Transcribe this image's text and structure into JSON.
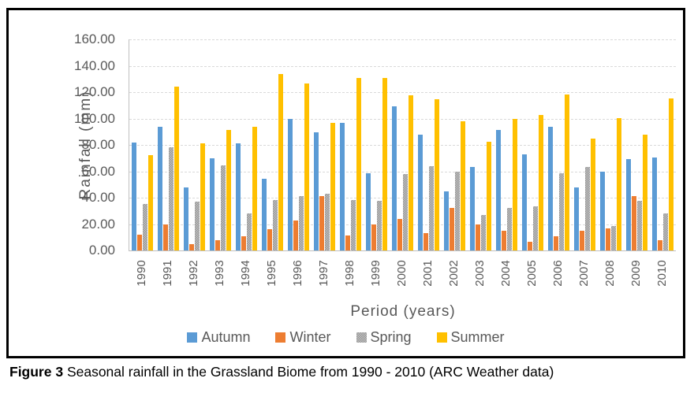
{
  "figure": {
    "caption_label": "Figure 3",
    "caption_text": " Seasonal rainfall in the Grassland Biome from 1990 - 2010 (ARC Weather data)"
  },
  "chart_data": {
    "type": "bar",
    "title": "",
    "xlabel": "Period (years)",
    "ylabel": "Rainfall (mm)",
    "ylim": [
      0,
      160
    ],
    "ytick_step": 20,
    "ytick_labels": [
      "160.00",
      "140.00",
      "120.00",
      "100.00",
      "80.00",
      "60.00",
      "40.00",
      "20.00",
      "0.00"
    ],
    "grid": true,
    "legend_position": "bottom",
    "categories": [
      "1990",
      "1991",
      "1992",
      "1993",
      "1994",
      "1995",
      "1996",
      "1997",
      "1998",
      "1999",
      "2000",
      "2001",
      "2002",
      "2003",
      "2004",
      "2005",
      "2006",
      "2007",
      "2008",
      "2009",
      "2010"
    ],
    "series": [
      {
        "name": "Autumn",
        "color": "#5B9BD5",
        "pattern": "solid",
        "values": [
          82,
          94,
          48,
          70,
          81,
          54.5,
          100,
          89.5,
          97,
          58.5,
          109,
          87.5,
          44.5,
          63,
          91.5,
          73,
          93.5,
          48,
          59.5,
          69.5,
          70.5
        ]
      },
      {
        "name": "Winter",
        "color": "#ED7D31",
        "pattern": "solid",
        "values": [
          12,
          20,
          5,
          8,
          10.5,
          16,
          22.5,
          41,
          11.5,
          20,
          24,
          13,
          32.5,
          20,
          15,
          6.5,
          10.5,
          15,
          17,
          41.5,
          7.5
        ]
      },
      {
        "name": "Spring",
        "color": "#A6A6A6",
        "pattern": "checker",
        "values": [
          35,
          78,
          37,
          64.5,
          28,
          38.5,
          41.5,
          43,
          38.5,
          37.5,
          58,
          64,
          59.5,
          27,
          32.5,
          33.5,
          58.5,
          63,
          18.5,
          37.5,
          28
        ]
      },
      {
        "name": "Summer",
        "color": "#FFC000",
        "pattern": "solid",
        "values": [
          72,
          124,
          81,
          91.5,
          93.5,
          134,
          126.5,
          97,
          131,
          130.5,
          117.5,
          114.5,
          98,
          82.5,
          100,
          102.5,
          118.5,
          84.5,
          100.5,
          88,
          115.5
        ]
      }
    ]
  }
}
